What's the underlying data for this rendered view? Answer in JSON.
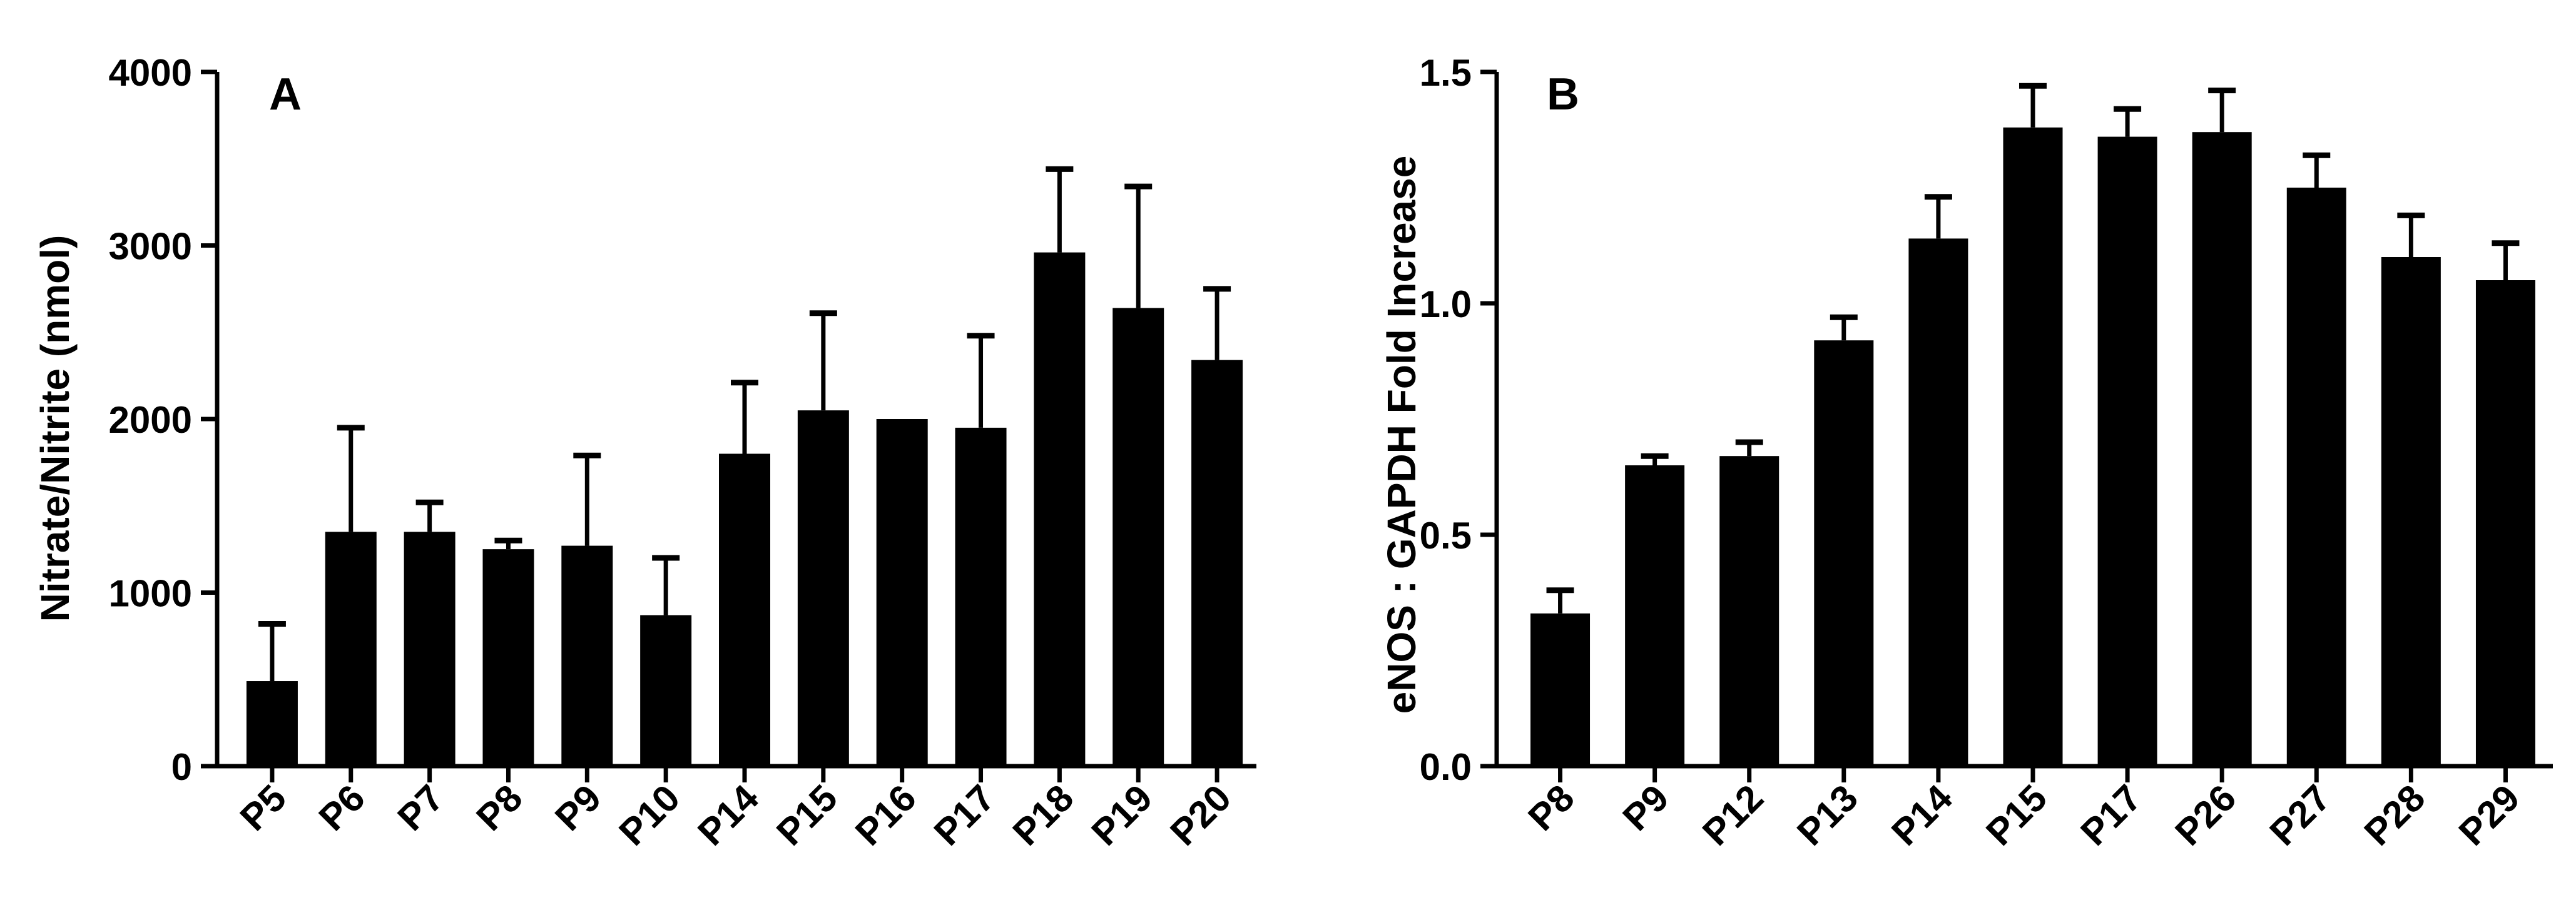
{
  "chart_data": [
    {
      "type": "bar",
      "panel_label": "A",
      "ylabel": "Nitrate/Nitrite  (nmol)",
      "xlabel": "",
      "categories": [
        "P5",
        "P6",
        "P7",
        "P8",
        "P9",
        "P10",
        "P14",
        "P15",
        "P16",
        "P17",
        "P18",
        "P19",
        "P20"
      ],
      "values": [
        490,
        1350,
        1350,
        1250,
        1270,
        870,
        1800,
        2050,
        2000,
        1950,
        2960,
        2640,
        2340
      ],
      "error_upper": [
        330,
        600,
        170,
        50,
        520,
        330,
        410,
        560,
        0,
        530,
        480,
        700,
        410
      ],
      "ylim": [
        0,
        4000
      ],
      "yticks": [
        "0",
        "1000",
        "2000",
        "3000",
        "4000"
      ],
      "ytick_values": [
        0,
        1000,
        2000,
        3000,
        4000
      ],
      "bar_color": "#000000",
      "grid": false
    },
    {
      "type": "bar",
      "panel_label": "B",
      "ylabel": "eNOS : GAPDH Fold Increase",
      "xlabel": "",
      "categories": [
        "P8",
        "P9",
        "P12",
        "P13",
        "P14",
        "P15",
        "P17",
        "P26",
        "P27",
        "P28",
        "P29"
      ],
      "values": [
        0.33,
        0.65,
        0.67,
        0.92,
        1.14,
        1.38,
        1.36,
        1.37,
        1.25,
        1.1,
        1.05
      ],
      "error_upper": [
        0.05,
        0.02,
        0.03,
        0.05,
        0.09,
        0.09,
        0.06,
        0.09,
        0.07,
        0.09,
        0.08
      ],
      "ylim": [
        0,
        1.5
      ],
      "yticks": [
        "0.0",
        "0.5",
        "1.0",
        "1.5"
      ],
      "ytick_values": [
        0,
        0.5,
        1.0,
        1.5
      ],
      "bar_color": "#000000",
      "grid": false
    }
  ]
}
